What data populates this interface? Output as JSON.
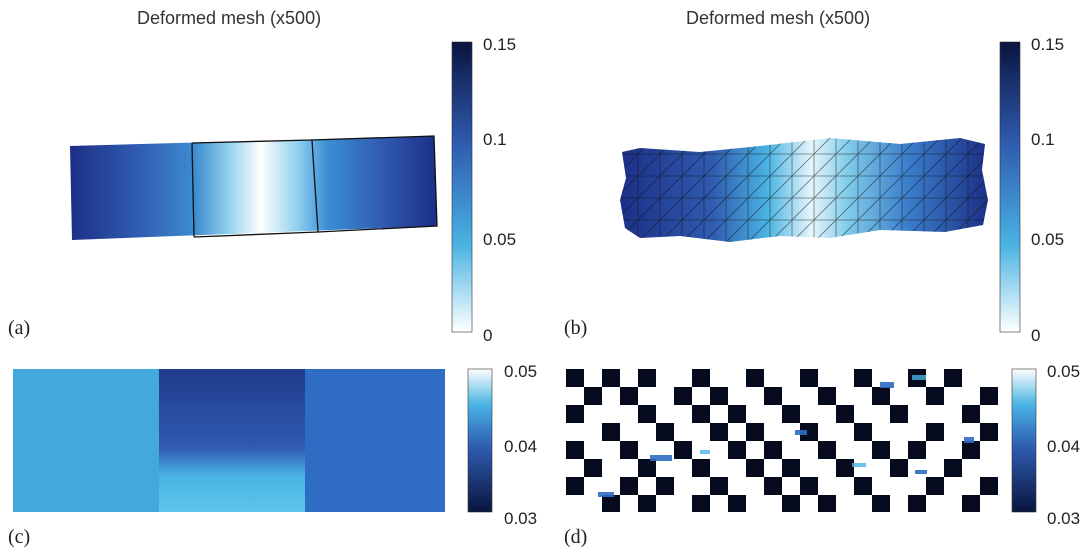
{
  "panels": [
    {
      "label": "(a)",
      "title": "Deformed mesh (x500)",
      "colorbar": {
        "ticks": [
          "0.15",
          "0.1",
          "0.05",
          "0"
        ],
        "range": [
          0,
          0.15
        ]
      }
    },
    {
      "label": "(b)",
      "title": "Deformed mesh (x500)",
      "colorbar": {
        "ticks": [
          "0.15",
          "0.1",
          "0.05",
          "0"
        ],
        "range": [
          0,
          0.15
        ]
      }
    },
    {
      "label": "(c)",
      "colorbar": {
        "ticks": [
          "0.05",
          "0.04",
          "0.03"
        ],
        "range": [
          0.03,
          0.05
        ]
      }
    },
    {
      "label": "(d)",
      "colorbar": {
        "ticks": [
          "0.05",
          "0.04",
          "0.03"
        ],
        "range": [
          0.03,
          0.05
        ]
      }
    }
  ],
  "colors": {
    "dark": "#0a1440",
    "mid": "#2f5bb0",
    "light": "#49b3e3",
    "white": "#ffffff"
  }
}
